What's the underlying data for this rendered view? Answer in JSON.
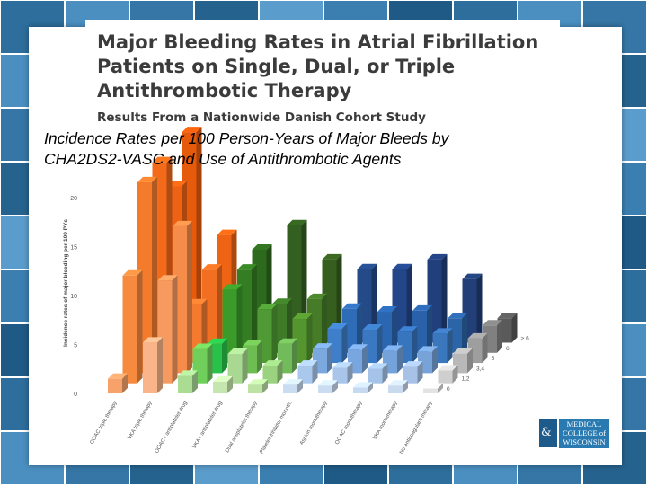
{
  "slide": {
    "title_lines": [
      "Major Bleeding Rates in Atrial Fibrillation",
      "Patients on Single, Dual, or Triple",
      "Antithrombotic Therapy"
    ],
    "subtitle": "Results From a Nationwide Danish Cohort Study",
    "caption_lines": [
      "Incidence Rates per 100 Person-Years of Major Bleeds by",
      "CHA2DS2-VASC and Use of Antithrombotic Agents"
    ],
    "logo_lines": [
      "MEDICAL",
      "COLLEGE of",
      "WISCONSIN"
    ],
    "logo_symbol": "&"
  },
  "chart_data": {
    "type": "bar",
    "ylabel": "Incidence rates of major bleeding per 100 PYs",
    "ylim": [
      0,
      20
    ],
    "yticks": [
      0,
      5,
      10,
      15,
      20
    ],
    "categories": [
      "OOAC triple therapy",
      "VKA triple therapy",
      "OOAC+ antiplatelet drug",
      "VKA+ antiplatelet drug",
      "Dual antiplatelet therapy",
      "Platelet inhibitor monoth.",
      "Aspirin monotherapy",
      "OOAC monotherapy",
      "VKA monotherapy",
      "No anticoagulant therapy"
    ],
    "series": [
      {
        "name": "0",
        "values": [
          1.5,
          5.2,
          1.8,
          1.2,
          0.9,
          0.9,
          0.8,
          0.6,
          0.8,
          0.5
        ]
      },
      {
        "name": "1,2",
        "values": [
          11.0,
          10.5,
          3.5,
          3.0,
          1.8,
          1.8,
          1.6,
          1.5,
          1.7,
          1.3
        ]
      },
      {
        "name": "3,4",
        "values": [
          19.5,
          15.0,
          3.0,
          2.8,
          3.0,
          2.5,
          2.4,
          2.3,
          2.2,
          2.0
        ]
      },
      {
        "name": "5",
        "values": [
          20.5,
          6.0,
          7.5,
          5.5,
          4.5,
          3.5,
          3.4,
          3.2,
          3.0,
          2.5
        ]
      },
      {
        "name": "6",
        "values": [
          17.0,
          8.5,
          8.5,
          5.0,
          5.5,
          4.5,
          4.2,
          4.3,
          3.5,
          2.8
        ]
      },
      {
        "name": "> 6",
        "values": [
          21.5,
          11.0,
          9.5,
          12.0,
          8.5,
          7.5,
          7.5,
          8.5,
          6.5,
          2.5
        ]
      }
    ],
    "colors": [
      [
        "#f7a26a",
        "#f68a3f",
        "#f57b2c",
        "#f26a1a",
        "#ee6214",
        "#e65a0c"
      ],
      [
        "#f9b48a",
        "#f79a60",
        "#f68c4a",
        "#f47a30",
        "#f26f22",
        "#ee6414"
      ],
      [
        "#aadc94",
        "#6fcf5a",
        "#28c24a",
        "#3a9a2a",
        "#357d22",
        "#2e6a1e"
      ],
      [
        "#c6e6b0",
        "#a8d892",
        "#6ebd52",
        "#4f9a34",
        "#3e7a28",
        "#335f20"
      ],
      [
        "#bde3a4",
        "#9ad280",
        "#72bb5a",
        "#54952f",
        "#467b28",
        "#365f1f"
      ],
      [
        "#c9dcf2",
        "#aac7ec",
        "#7aa8df",
        "#3f7ec8",
        "#2f6cb7",
        "#254a88"
      ],
      [
        "#c9dcf2",
        "#a9c6ea",
        "#79a6de",
        "#3a79c2",
        "#2b66b0",
        "#234688"
      ],
      [
        "#c5d9f0",
        "#a5c3e8",
        "#74a2da",
        "#3775be",
        "#2a62aa",
        "#213f7a"
      ],
      [
        "#c9d9ee",
        "#a7c2e6",
        "#77a3d8",
        "#3a77bd",
        "#2c64a8",
        "#223f78"
      ],
      [
        "#e3e3e3",
        "#cfcfcf",
        "#b8b8b8",
        "#9e9e9e",
        "#808080",
        "#5a5a5a"
      ]
    ]
  }
}
